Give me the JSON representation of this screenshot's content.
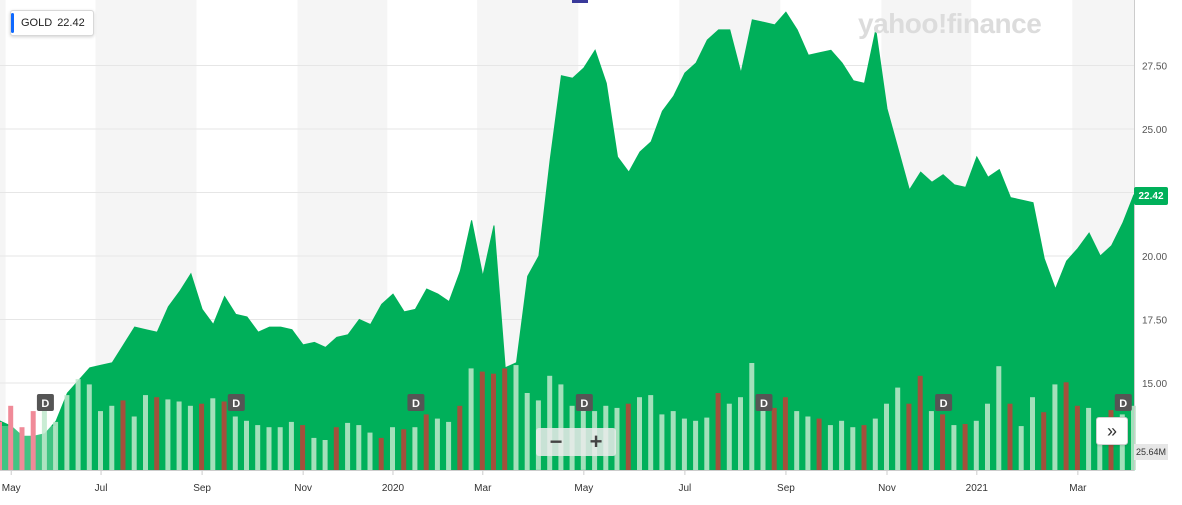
{
  "ticker": {
    "symbol": "GOLD",
    "price": "22.42"
  },
  "logo_text": "yahoo!finance",
  "last_price_label": "22.42",
  "volume_label": "25.64M",
  "zoom": {
    "minus": "−",
    "plus": "+"
  },
  "nav_icon": "»",
  "colors": {
    "area": "#00b05a",
    "band": "#f5f5f5",
    "vol_up": "#bfe9cc",
    "vol_down": "#a3503c",
    "vol_neg_zone": "#f08a98",
    "dividend_badge": "#555555"
  },
  "chart_data": {
    "type": "area",
    "ylim": [
      12.5,
      30.0
    ],
    "yticks": [
      "15.00",
      "17.50",
      "20.00",
      "22.50",
      "25.00",
      "27.50"
    ],
    "ytick_values": [
      15.0,
      17.5,
      20.0,
      22.5,
      25.0,
      27.5
    ],
    "x_labels": [
      "May",
      "Jul",
      "Sep",
      "Nov",
      "2020",
      "Mar",
      "May",
      "Jul",
      "Sep",
      "Nov",
      "2021",
      "Mar"
    ],
    "x_label_index": [
      1,
      9,
      18,
      27,
      35,
      43,
      52,
      61,
      70,
      79,
      87,
      96
    ],
    "x": [
      "2019-04-29",
      "2019-05-06",
      "2019-05-13",
      "2019-05-20",
      "2019-05-27",
      "2019-06-03",
      "2019-06-10",
      "2019-06-17",
      "2019-06-24",
      "2019-07-01",
      "2019-07-08",
      "2019-07-15",
      "2019-07-22",
      "2019-07-29",
      "2019-08-05",
      "2019-08-12",
      "2019-08-19",
      "2019-08-26",
      "2019-09-02",
      "2019-09-09",
      "2019-09-16",
      "2019-09-23",
      "2019-09-30",
      "2019-10-07",
      "2019-10-14",
      "2019-10-21",
      "2019-10-28",
      "2019-11-04",
      "2019-11-11",
      "2019-11-18",
      "2019-11-25",
      "2019-12-02",
      "2019-12-09",
      "2019-12-16",
      "2019-12-23",
      "2019-12-30",
      "2020-01-06",
      "2020-01-13",
      "2020-01-20",
      "2020-01-27",
      "2020-02-03",
      "2020-02-10",
      "2020-02-17",
      "2020-02-24",
      "2020-03-02",
      "2020-03-09",
      "2020-03-16",
      "2020-03-23",
      "2020-03-30",
      "2020-04-06",
      "2020-04-13",
      "2020-04-20",
      "2020-04-27",
      "2020-05-04",
      "2020-05-11",
      "2020-05-18",
      "2020-05-25",
      "2020-06-01",
      "2020-06-08",
      "2020-06-15",
      "2020-06-22",
      "2020-06-29",
      "2020-07-06",
      "2020-07-13",
      "2020-07-20",
      "2020-07-27",
      "2020-08-03",
      "2020-08-10",
      "2020-08-17",
      "2020-08-24",
      "2020-08-31",
      "2020-09-07",
      "2020-09-14",
      "2020-09-21",
      "2020-09-28",
      "2020-10-05",
      "2020-10-12",
      "2020-10-19",
      "2020-10-26",
      "2020-11-02",
      "2020-11-09",
      "2020-11-16",
      "2020-11-23",
      "2020-11-30",
      "2020-12-07",
      "2020-12-14",
      "2020-12-21",
      "2020-12-28",
      "2021-01-04",
      "2021-01-11",
      "2021-01-18",
      "2021-01-25",
      "2021-02-01",
      "2021-02-08",
      "2021-02-15",
      "2021-02-22",
      "2021-03-01",
      "2021-03-08",
      "2021-03-15",
      "2021-03-22",
      "2021-03-29",
      "2021-04-05"
    ],
    "series": [
      {
        "values": [
          13.5,
          13.3,
          12.9,
          12.9,
          13.0,
          13.5,
          14.6,
          15.1,
          15.6,
          15.7,
          15.8,
          16.5,
          17.2,
          17.1,
          17.0,
          18.0,
          18.6,
          19.3,
          17.9,
          17.3,
          18.4,
          17.7,
          17.6,
          17.0,
          17.2,
          17.2,
          17.1,
          16.5,
          16.6,
          16.4,
          16.8,
          16.9,
          17.5,
          17.3,
          18.1,
          18.5,
          17.8,
          17.9,
          18.7,
          18.5,
          18.2,
          19.4,
          21.4,
          19.2,
          21.2,
          15.6,
          15.8,
          19.2,
          20.0,
          23.8,
          27.1,
          27.0,
          27.4,
          28.1,
          26.8,
          23.9,
          23.3,
          24.1,
          24.5,
          25.7,
          26.3,
          27.2,
          27.6,
          28.5,
          28.9,
          28.9,
          27.2,
          29.3,
          29.2,
          29.1,
          29.6,
          28.9,
          27.9,
          28.0,
          28.1,
          27.6,
          26.9,
          26.8,
          28.9,
          25.8,
          24.2,
          22.6,
          23.3,
          22.9,
          23.2,
          22.8,
          22.7,
          23.9,
          23.1,
          23.4,
          22.3,
          22.2,
          22.1,
          19.9,
          18.7,
          19.8,
          20.3,
          20.9,
          20.0,
          20.4,
          21.3,
          22.42
        ]
      }
    ],
    "volume_dir": [
      0,
      0,
      0,
      0,
      1,
      1,
      1,
      1,
      1,
      1,
      1,
      0,
      1,
      1,
      0,
      1,
      1,
      1,
      0,
      1,
      0,
      1,
      1,
      1,
      1,
      1,
      1,
      0,
      1,
      1,
      0,
      1,
      1,
      1,
      0,
      1,
      0,
      1,
      0,
      1,
      1,
      0,
      1,
      0,
      0,
      0,
      1,
      1,
      1,
      1,
      1,
      1,
      1,
      1,
      1,
      1,
      0,
      1,
      1,
      1,
      1,
      1,
      1,
      1,
      0,
      1,
      1,
      1,
      1,
      0,
      0,
      1,
      1,
      0,
      1,
      1,
      1,
      0,
      1,
      1,
      1,
      0,
      0,
      1,
      0,
      1,
      0,
      1,
      1,
      1,
      0,
      1,
      1,
      0,
      1,
      0,
      0,
      1,
      1,
      0,
      1,
      1
    ],
    "volume_rel": [
      0.45,
      0.6,
      0.4,
      0.55,
      0.6,
      0.45,
      0.7,
      0.85,
      0.8,
      0.55,
      0.6,
      0.65,
      0.5,
      0.7,
      0.68,
      0.66,
      0.64,
      0.6,
      0.62,
      0.67,
      0.64,
      0.5,
      0.46,
      0.42,
      0.4,
      0.4,
      0.45,
      0.42,
      0.3,
      0.28,
      0.4,
      0.44,
      0.42,
      0.35,
      0.3,
      0.4,
      0.38,
      0.4,
      0.52,
      0.48,
      0.45,
      0.6,
      0.95,
      0.92,
      0.9,
      0.95,
      0.98,
      0.72,
      0.65,
      0.88,
      0.8,
      0.6,
      0.65,
      0.55,
      0.6,
      0.58,
      0.62,
      0.68,
      0.7,
      0.52,
      0.55,
      0.48,
      0.46,
      0.49,
      0.72,
      0.62,
      0.68,
      1.0,
      0.7,
      0.58,
      0.68,
      0.55,
      0.5,
      0.48,
      0.42,
      0.46,
      0.4,
      0.42,
      0.48,
      0.62,
      0.77,
      0.62,
      0.88,
      0.55,
      0.52,
      0.42,
      0.43,
      0.46,
      0.62,
      0.97,
      0.62,
      0.41,
      0.68,
      0.54,
      0.8,
      0.82,
      0.6,
      0.58,
      0.45,
      0.56,
      0.52,
      0.6
    ],
    "dividends": [
      {
        "index": 4,
        "label": "D"
      },
      {
        "index": 21,
        "label": "D"
      },
      {
        "index": 37,
        "label": "D"
      },
      {
        "index": 52,
        "label": "D"
      },
      {
        "index": 68,
        "label": "D"
      },
      {
        "index": 84,
        "label": "D"
      },
      {
        "index": 100,
        "label": "D"
      }
    ],
    "grid": true
  }
}
